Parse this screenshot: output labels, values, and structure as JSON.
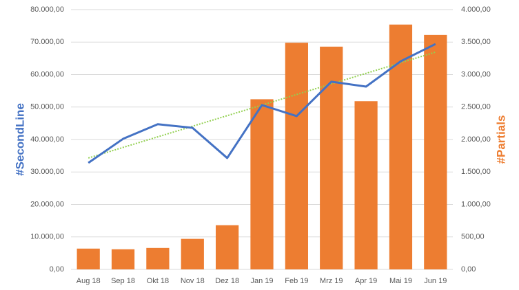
{
  "chart_data": {
    "type": "bar-line",
    "categories": [
      "Aug 18",
      "Sep 18",
      "Okt 18",
      "Nov 18",
      "Dez 18",
      "Jan 19",
      "Feb 19",
      "Mrz 19",
      "Apr 19",
      "Mai 19",
      "Jun 19"
    ],
    "ylabel": "#SecondLine",
    "y2label": "#Partials",
    "ylim": [
      0,
      80000
    ],
    "yticks": [
      {
        "value": 0,
        "label": "0,00"
      },
      {
        "value": 10000,
        "label": "10.000,00"
      },
      {
        "value": 20000,
        "label": "20.000,00"
      },
      {
        "value": 30000,
        "label": "30.000,00"
      },
      {
        "value": 40000,
        "label": "40.000,00"
      },
      {
        "value": 50000,
        "label": "50.000,00"
      },
      {
        "value": 60000,
        "label": "60.000,00"
      },
      {
        "value": 70000,
        "label": "70.000,00"
      },
      {
        "value": 80000,
        "label": "80.000,00"
      }
    ],
    "y2lim": [
      0,
      4000
    ],
    "y2ticks": [
      {
        "value": 0,
        "label": "0,00"
      },
      {
        "value": 500,
        "label": "500,00"
      },
      {
        "value": 1000,
        "label": "1.000,00"
      },
      {
        "value": 1500,
        "label": "1.500,00"
      },
      {
        "value": 2000,
        "label": "2.000,00"
      },
      {
        "value": 2500,
        "label": "2.500,00"
      },
      {
        "value": 3000,
        "label": "3.000,00"
      },
      {
        "value": 3500,
        "label": "3.500,00"
      },
      {
        "value": 4000,
        "label": "4.000,00"
      }
    ],
    "grid": true,
    "series": [
      {
        "type": "bar",
        "axis": "y2",
        "color": "#ed7d31",
        "values": [
          320,
          310,
          330,
          470,
          680,
          2620,
          3490,
          3430,
          2590,
          3770,
          3610
        ]
      },
      {
        "type": "line",
        "color": "#4472c4",
        "values": [
          32800,
          40200,
          44700,
          43600,
          34300,
          50600,
          47200,
          57800,
          56300,
          64100,
          69400
        ]
      }
    ],
    "trendline": {
      "color": "#92d050",
      "values": [
        34300,
        66900
      ]
    }
  }
}
